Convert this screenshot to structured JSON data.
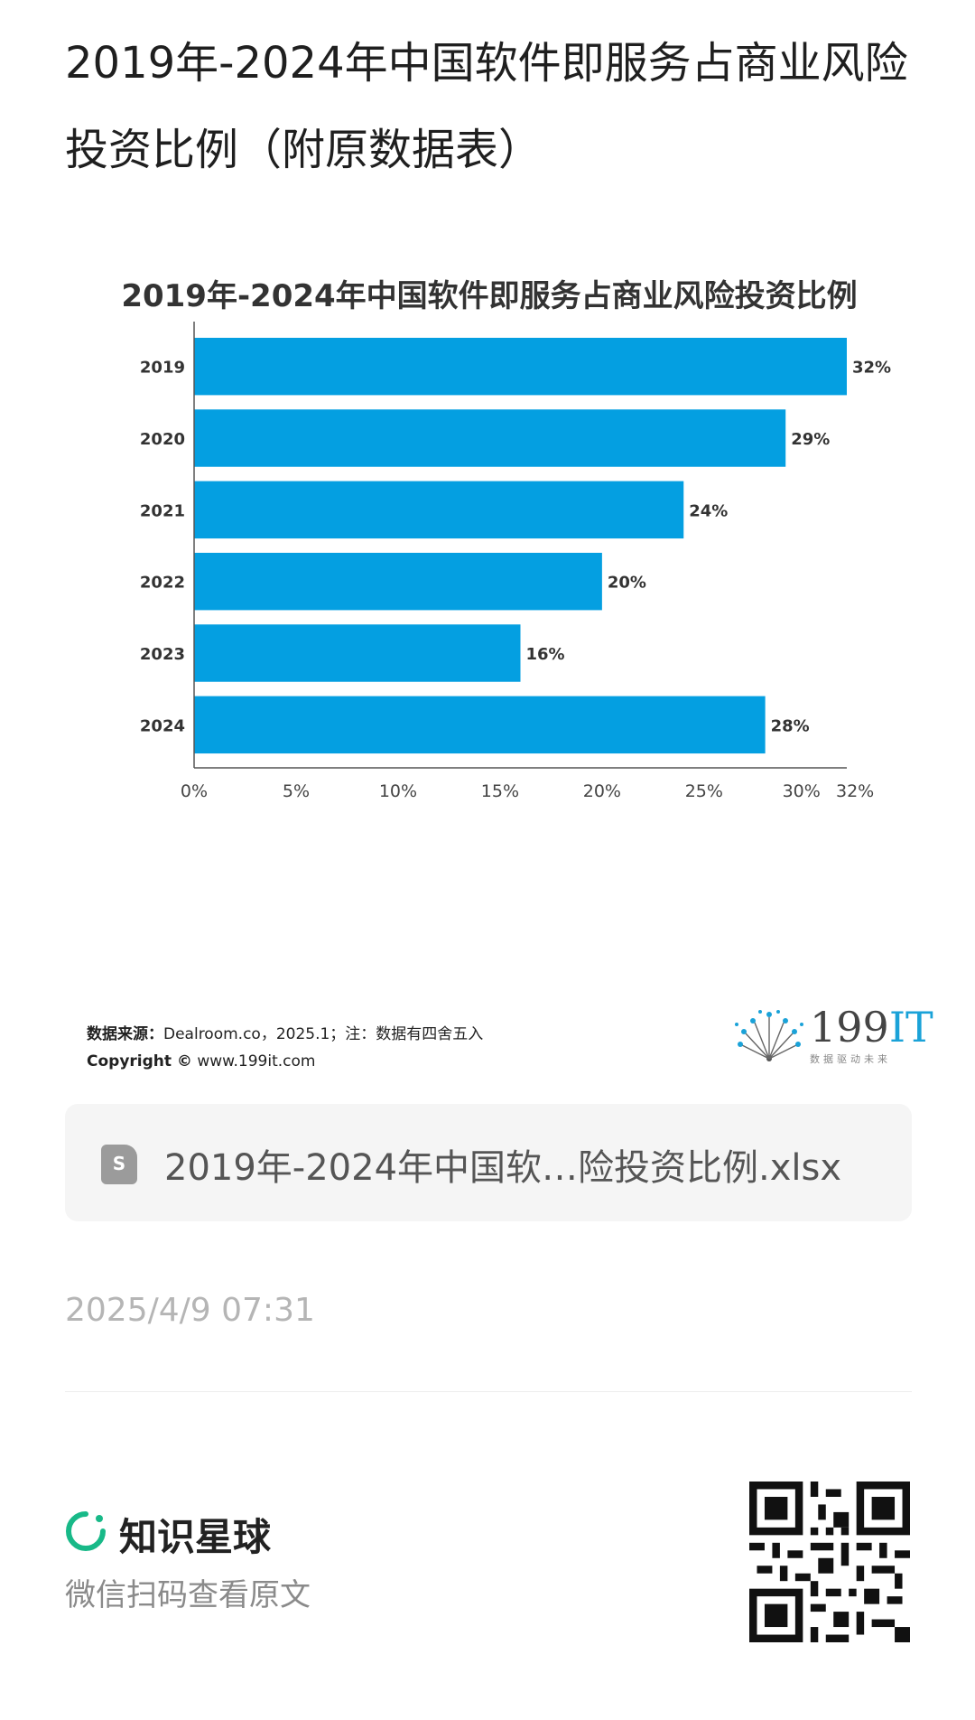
{
  "post": {
    "title": "2019年-2024年中国软件即服务占商业风险投资比例（附原数据表）",
    "file_name": "2019年-2024年中国软…险投资比例.xlsx",
    "file_icon": "S",
    "timestamp": "2025/4/9 07:31"
  },
  "source": {
    "label": "数据来源：",
    "text": "Dealroom.co，2025.1；注：数据有四舍五入",
    "copyright_label": "Copyright ©",
    "copyright_text": "www.199it.com"
  },
  "brand": {
    "name_num": "199",
    "name_it": "IT",
    "tagline": "数据驱动未来",
    "accent": "#1aa2d8"
  },
  "footer": {
    "app_name": "知识星球",
    "hint": "微信扫码查看原文",
    "icons": [
      "zsxq-logo-icon",
      "qr-code-icon"
    ]
  },
  "chart_data": {
    "type": "bar",
    "orientation": "horizontal",
    "title": "2019年-2024年中国软件即服务占商业风险投资比例",
    "categories": [
      "2019",
      "2020",
      "2021",
      "2022",
      "2023",
      "2024"
    ],
    "values": [
      32,
      29,
      24,
      20,
      16,
      28
    ],
    "value_labels": [
      "32%",
      "29%",
      "24%",
      "20%",
      "16%",
      "28%"
    ],
    "xlim": [
      0,
      32
    ],
    "x_ticks": [
      0,
      5,
      10,
      15,
      20,
      25,
      30,
      32
    ],
    "x_tick_labels": [
      "0%",
      "5%",
      "10%",
      "15%",
      "20%",
      "25%",
      "30%",
      "32%"
    ],
    "bar_color": "#049fe1",
    "grid": false,
    "legend": "none"
  }
}
